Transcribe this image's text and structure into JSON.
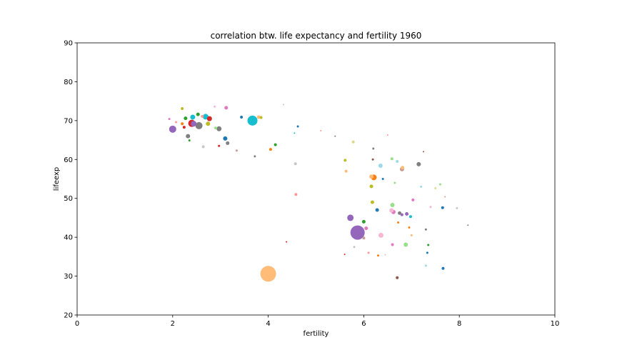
{
  "chart_data": {
    "type": "scatter",
    "title": "correlation btw. life expectancy and fertility 1960",
    "xlabel": "fertility",
    "ylabel": "lifeexp",
    "xlim": [
      0,
      10
    ],
    "ylim": [
      20,
      90
    ],
    "xticks": [
      0,
      2,
      4,
      6,
      8,
      10
    ],
    "xtick_labels": [
      "0",
      "2",
      "4",
      "6",
      "8",
      "10"
    ],
    "yticks": [
      20,
      30,
      40,
      50,
      60,
      70,
      80,
      90
    ],
    "ytick_labels": [
      "20",
      "30",
      "40",
      "50",
      "60",
      "70",
      "80",
      "90"
    ],
    "grid": false,
    "marker_size": "proportional to population",
    "points": [
      {
        "x": 4.0,
        "y": 30.6,
        "size": 11,
        "color": "#ffbb78"
      },
      {
        "x": 5.87,
        "y": 41.2,
        "size": 10,
        "color": "#9467bd"
      },
      {
        "x": 3.67,
        "y": 70.0,
        "size": 7,
        "color": "#17becf"
      },
      {
        "x": 2.0,
        "y": 67.8,
        "size": 5,
        "color": "#9467bd"
      },
      {
        "x": 2.55,
        "y": 68.7,
        "size": 5,
        "color": "#7f7f7f"
      },
      {
        "x": 2.4,
        "y": 69.3,
        "size": 5,
        "color": "#d62728"
      },
      {
        "x": 2.44,
        "y": 69.2,
        "size": 4,
        "color": "#9467bd"
      },
      {
        "x": 2.69,
        "y": 71.0,
        "size": 4,
        "color": "#17becf"
      },
      {
        "x": 2.42,
        "y": 70.9,
        "size": 3.5,
        "color": "#17becf"
      },
      {
        "x": 2.77,
        "y": 70.5,
        "size": 3.5,
        "color": "#d62728"
      },
      {
        "x": 2.97,
        "y": 67.9,
        "size": 3.5,
        "color": "#7f7f7f"
      },
      {
        "x": 2.74,
        "y": 69.2,
        "size": 3,
        "color": "#bcbd22"
      },
      {
        "x": 2.32,
        "y": 66.0,
        "size": 3,
        "color": "#7f7f7f"
      },
      {
        "x": 3.1,
        "y": 65.4,
        "size": 3,
        "color": "#1f77b4"
      },
      {
        "x": 3.15,
        "y": 64.2,
        "size": 2.5,
        "color": "#7f7f7f"
      },
      {
        "x": 2.27,
        "y": 70.6,
        "size": 2.5,
        "color": "#2ca02c"
      },
      {
        "x": 2.53,
        "y": 71.6,
        "size": 2.5,
        "color": "#2ca02c"
      },
      {
        "x": 2.2,
        "y": 73.1,
        "size": 2,
        "color": "#bcbd22"
      },
      {
        "x": 3.12,
        "y": 73.3,
        "size": 2.5,
        "color": "#e377c2"
      },
      {
        "x": 2.24,
        "y": 68.3,
        "size": 2,
        "color": "#d62728"
      },
      {
        "x": 2.2,
        "y": 69.2,
        "size": 2,
        "color": "#ff7f0e"
      },
      {
        "x": 2.35,
        "y": 64.9,
        "size": 1.5,
        "color": "#2ca02c"
      },
      {
        "x": 2.97,
        "y": 63.5,
        "size": 1.5,
        "color": "#d62728"
      },
      {
        "x": 2.64,
        "y": 63.3,
        "size": 2,
        "color": "#c7c7c7"
      },
      {
        "x": 3.44,
        "y": 70.9,
        "size": 2,
        "color": "#1f77b4"
      },
      {
        "x": 3.8,
        "y": 70.9,
        "size": 2.5,
        "color": "#ffbb78"
      },
      {
        "x": 3.85,
        "y": 70.8,
        "size": 2,
        "color": "#bcbd22"
      },
      {
        "x": 2.9,
        "y": 68.1,
        "size": 2,
        "color": "#98df8a"
      },
      {
        "x": 1.93,
        "y": 70.4,
        "size": 1.5,
        "color": "#e377c2"
      },
      {
        "x": 2.07,
        "y": 69.6,
        "size": 1.5,
        "color": "#ff9896"
      },
      {
        "x": 2.62,
        "y": 71.1,
        "size": 2,
        "color": "#ff9896"
      },
      {
        "x": 2.88,
        "y": 73.6,
        "size": 1.5,
        "color": "#f7b6d2"
      },
      {
        "x": 3.34,
        "y": 62.3,
        "size": 1.5,
        "color": "#c49c94"
      },
      {
        "x": 3.72,
        "y": 60.8,
        "size": 1.5,
        "color": "#7f7f7f"
      },
      {
        "x": 4.15,
        "y": 63.8,
        "size": 2,
        "color": "#2ca02c"
      },
      {
        "x": 4.05,
        "y": 62.6,
        "size": 2,
        "color": "#ff7f0e"
      },
      {
        "x": 4.32,
        "y": 74.1,
        "size": 1,
        "color": "#c7c7c7"
      },
      {
        "x": 4.62,
        "y": 68.5,
        "size": 1.5,
        "color": "#1f77b4"
      },
      {
        "x": 4.55,
        "y": 66.8,
        "size": 1,
        "color": "#17becf"
      },
      {
        "x": 4.57,
        "y": 58.9,
        "size": 2,
        "color": "#c7c7c7"
      },
      {
        "x": 4.58,
        "y": 51.0,
        "size": 2,
        "color": "#ff9896"
      },
      {
        "x": 4.38,
        "y": 38.8,
        "size": 1,
        "color": "#d62728"
      },
      {
        "x": 5.1,
        "y": 67.4,
        "size": 1,
        "color": "#ff9896"
      },
      {
        "x": 5.4,
        "y": 66.0,
        "size": 1,
        "color": "#7f7f7f"
      },
      {
        "x": 5.61,
        "y": 59.8,
        "size": 2,
        "color": "#bcbd22"
      },
      {
        "x": 5.63,
        "y": 57.0,
        "size": 2,
        "color": "#ffbb78"
      },
      {
        "x": 5.78,
        "y": 64.5,
        "size": 2,
        "color": "#dbdb8d"
      },
      {
        "x": 5.72,
        "y": 45.0,
        "size": 4.5,
        "color": "#9467bd"
      },
      {
        "x": 5.8,
        "y": 37.5,
        "size": 1.5,
        "color": "#c7c7c7"
      },
      {
        "x": 5.6,
        "y": 35.6,
        "size": 1,
        "color": "#d62728"
      },
      {
        "x": 6.0,
        "y": 44.0,
        "size": 2.5,
        "color": "#2ca02c"
      },
      {
        "x": 6.05,
        "y": 42.3,
        "size": 2.5,
        "color": "#e377c2"
      },
      {
        "x": 6.0,
        "y": 39.8,
        "size": 2,
        "color": "#c49c94"
      },
      {
        "x": 6.21,
        "y": 55.4,
        "size": 4,
        "color": "#ff7f0e"
      },
      {
        "x": 6.16,
        "y": 55.6,
        "size": 3,
        "color": "#ffbb78"
      },
      {
        "x": 6.16,
        "y": 53.1,
        "size": 2.5,
        "color": "#bcbd22"
      },
      {
        "x": 6.18,
        "y": 49.0,
        "size": 2.5,
        "color": "#bcbd22"
      },
      {
        "x": 6.28,
        "y": 47.0,
        "size": 2.5,
        "color": "#1f77b4"
      },
      {
        "x": 6.35,
        "y": 58.4,
        "size": 3,
        "color": "#9edae5"
      },
      {
        "x": 6.36,
        "y": 40.5,
        "size": 3.5,
        "color": "#f7b6d2"
      },
      {
        "x": 6.19,
        "y": 60.0,
        "size": 1.5,
        "color": "#8c564b"
      },
      {
        "x": 6.2,
        "y": 62.8,
        "size": 1.5,
        "color": "#7f7f7f"
      },
      {
        "x": 6.3,
        "y": 35.3,
        "size": 1.5,
        "color": "#ff7f0e"
      },
      {
        "x": 6.45,
        "y": 35.5,
        "size": 1,
        "color": "#c7c7c7"
      },
      {
        "x": 6.59,
        "y": 60.2,
        "size": 2,
        "color": "#98df8a"
      },
      {
        "x": 6.7,
        "y": 59.5,
        "size": 2,
        "color": "#9edae5"
      },
      {
        "x": 6.8,
        "y": 57.5,
        "size": 3,
        "color": "#c49c94"
      },
      {
        "x": 6.81,
        "y": 57.9,
        "size": 2.5,
        "color": "#ffbb78"
      },
      {
        "x": 6.6,
        "y": 48.3,
        "size": 3,
        "color": "#98df8a"
      },
      {
        "x": 6.62,
        "y": 46.5,
        "size": 3,
        "color": "#e377c2"
      },
      {
        "x": 6.58,
        "y": 46.9,
        "size": 3,
        "color": "#f7b6d2"
      },
      {
        "x": 6.75,
        "y": 46.2,
        "size": 2.5,
        "color": "#7f7f7f"
      },
      {
        "x": 6.8,
        "y": 45.8,
        "size": 2,
        "color": "#9467bd"
      },
      {
        "x": 6.9,
        "y": 46.0,
        "size": 2.5,
        "color": "#9467bd"
      },
      {
        "x": 6.98,
        "y": 45.3,
        "size": 2,
        "color": "#17becf"
      },
      {
        "x": 6.72,
        "y": 43.8,
        "size": 1.5,
        "color": "#ff7f0e"
      },
      {
        "x": 6.88,
        "y": 38.1,
        "size": 3,
        "color": "#98df8a"
      },
      {
        "x": 6.6,
        "y": 38.1,
        "size": 2,
        "color": "#e377c2"
      },
      {
        "x": 6.7,
        "y": 29.6,
        "size": 2,
        "color": "#8c564b"
      },
      {
        "x": 7.03,
        "y": 49.6,
        "size": 2,
        "color": "#e377c2"
      },
      {
        "x": 7.15,
        "y": 58.8,
        "size": 3,
        "color": "#7f7f7f"
      },
      {
        "x": 7.25,
        "y": 62.0,
        "size": 1,
        "color": "#8c564b"
      },
      {
        "x": 7.3,
        "y": 42.0,
        "size": 1.5,
        "color": "#7f7f7f"
      },
      {
        "x": 7.33,
        "y": 36.0,
        "size": 1.5,
        "color": "#1f77b4"
      },
      {
        "x": 7.3,
        "y": 32.7,
        "size": 1.5,
        "color": "#9edae5"
      },
      {
        "x": 7.35,
        "y": 38.0,
        "size": 1.5,
        "color": "#2ca02c"
      },
      {
        "x": 7.5,
        "y": 52.6,
        "size": 1.5,
        "color": "#dbdb8d"
      },
      {
        "x": 7.6,
        "y": 53.6,
        "size": 1.5,
        "color": "#98df8a"
      },
      {
        "x": 7.65,
        "y": 47.6,
        "size": 2,
        "color": "#1f77b4"
      },
      {
        "x": 7.66,
        "y": 32.0,
        "size": 2,
        "color": "#1f77b4"
      },
      {
        "x": 7.7,
        "y": 50.4,
        "size": 1,
        "color": "#c49c94"
      },
      {
        "x": 7.95,
        "y": 47.5,
        "size": 1.5,
        "color": "#c7c7c7"
      },
      {
        "x": 8.18,
        "y": 43.1,
        "size": 1,
        "color": "#7f7f7f"
      },
      {
        "x": 7.0,
        "y": 40.5,
        "size": 1.5,
        "color": "#ffbb78"
      },
      {
        "x": 6.95,
        "y": 42.5,
        "size": 1.5,
        "color": "#ff7f0e"
      },
      {
        "x": 6.4,
        "y": 55.0,
        "size": 1.5,
        "color": "#1f77b4"
      },
      {
        "x": 6.5,
        "y": 66.3,
        "size": 1,
        "color": "#ff9896"
      },
      {
        "x": 6.65,
        "y": 54.0,
        "size": 1.5,
        "color": "#98df8a"
      },
      {
        "x": 7.2,
        "y": 53.0,
        "size": 1.5,
        "color": "#9edae5"
      },
      {
        "x": 7.4,
        "y": 47.8,
        "size": 1.5,
        "color": "#f7b6d2"
      },
      {
        "x": 6.1,
        "y": 36.0,
        "size": 1.5,
        "color": "#ff9896"
      }
    ]
  }
}
